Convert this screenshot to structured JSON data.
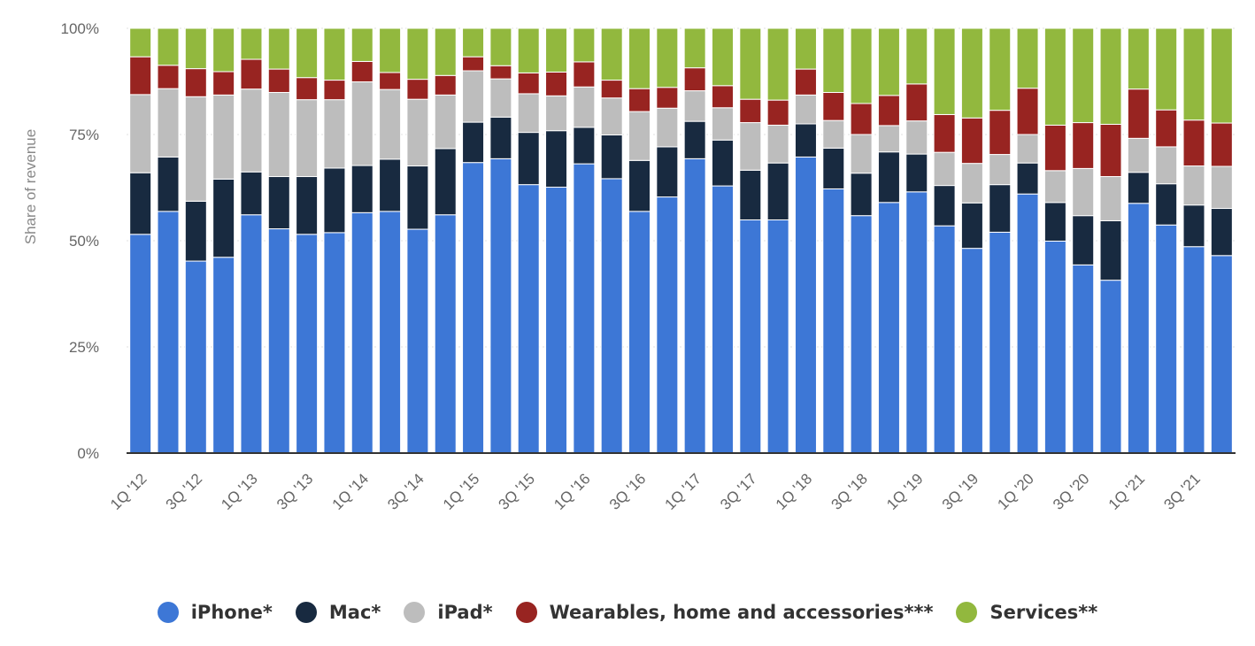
{
  "chart_data": {
    "type": "bar",
    "stacked": true,
    "ylabel": "Share of revenue",
    "ylim": [
      0,
      100
    ],
    "y_ticks": [
      "0%",
      "25%",
      "50%",
      "75%",
      "100%"
    ],
    "grid": true,
    "legend_position": "bottom",
    "categories": [
      "1Q '12",
      "2Q '12",
      "3Q '12",
      "4Q '12",
      "1Q '13",
      "2Q '13",
      "3Q '13",
      "4Q '13",
      "1Q '14",
      "2Q '14",
      "3Q '14",
      "4Q '14",
      "1Q '15",
      "2Q '15",
      "3Q '15",
      "4Q '15",
      "1Q '16",
      "2Q '16",
      "3Q '16",
      "4Q '16",
      "1Q '17",
      "2Q '17",
      "3Q '17",
      "4Q '17",
      "1Q '18",
      "2Q '18",
      "3Q '18",
      "4Q '18",
      "1Q '19",
      "2Q '19",
      "3Q '19",
      "4Q '19",
      "1Q '20",
      "2Q '20",
      "3Q '20",
      "4Q '20",
      "1Q '21",
      "2Q '21",
      "3Q '21",
      "4Q '21"
    ],
    "x_tick_labels": [
      "1Q '12",
      "3Q '12",
      "1Q '13",
      "3Q '13",
      "1Q '14",
      "3Q '14",
      "1Q '15",
      "3Q '15",
      "1Q '16",
      "3Q '16",
      "1Q '17",
      "3Q '17",
      "1Q '18",
      "3Q '18",
      "1Q '19",
      "3Q '19",
      "1Q '20",
      "3Q '20",
      "1Q '21",
      "3Q '21"
    ],
    "series": [
      {
        "name": "iPhone*",
        "color": "#3d77d6",
        "values": [
          51.5,
          56.9,
          45.2,
          46.1,
          56.1,
          52.8,
          51.5,
          51.9,
          56.6,
          56.9,
          52.7,
          56.1,
          68.4,
          69.3,
          63.2,
          62.6,
          68.1,
          64.6,
          56.9,
          60.3,
          69.3,
          62.9,
          54.9,
          54.9,
          69.7,
          62.2,
          55.9,
          59.0,
          61.5,
          53.5,
          48.2,
          52.0,
          61.0,
          49.9,
          44.3,
          40.7,
          58.8,
          53.7,
          48.6,
          46.5
        ]
      },
      {
        "name": "Mac*",
        "color": "#182a40",
        "values": [
          14.5,
          12.8,
          14.1,
          18.4,
          10.1,
          12.3,
          13.6,
          15.2,
          11.1,
          12.3,
          14.9,
          15.6,
          9.5,
          9.8,
          12.3,
          13.3,
          8.6,
          10.3,
          12.0,
          11.8,
          8.8,
          10.8,
          11.7,
          13.4,
          7.8,
          9.6,
          10.0,
          11.9,
          8.9,
          9.5,
          10.7,
          11.2,
          7.3,
          9.1,
          11.6,
          14.0,
          7.3,
          9.7,
          9.8,
          11.1
        ]
      },
      {
        "name": "iPad*",
        "color": "#bdbdbd",
        "values": [
          18.4,
          16.1,
          24.6,
          19.8,
          19.5,
          19.8,
          18.1,
          16.1,
          19.7,
          16.4,
          15.7,
          12.6,
          12.1,
          9.0,
          9.1,
          8.2,
          9.5,
          8.7,
          11.5,
          9.1,
          7.2,
          7.6,
          11.2,
          8.9,
          6.8,
          6.5,
          9.1,
          6.2,
          7.8,
          7.8,
          9.3,
          7.1,
          6.7,
          7.5,
          11.1,
          10.4,
          8.0,
          8.7,
          9.2,
          9.9
        ]
      },
      {
        "name": "Wearables, home and accessories***",
        "color": "#982421",
        "values": [
          8.9,
          5.5,
          6.6,
          5.5,
          7.0,
          5.5,
          5.2,
          4.6,
          4.8,
          4.0,
          4.7,
          4.6,
          3.3,
          3.1,
          4.9,
          5.6,
          5.9,
          4.2,
          5.4,
          4.9,
          5.4,
          5.2,
          5.5,
          5.9,
          6.1,
          6.6,
          7.3,
          7.1,
          8.7,
          8.9,
          10.7,
          10.4,
          10.9,
          10.7,
          10.8,
          12.3,
          11.6,
          8.7,
          10.8,
          10.2
        ]
      },
      {
        "name": "Services**",
        "color": "#92b83e",
        "values": [
          6.7,
          8.7,
          9.5,
          10.2,
          7.3,
          9.6,
          11.6,
          12.2,
          7.8,
          10.4,
          12.0,
          11.1,
          6.7,
          8.8,
          10.5,
          10.3,
          7.9,
          12.2,
          14.2,
          13.9,
          9.3,
          13.5,
          16.7,
          16.9,
          9.6,
          15.1,
          17.7,
          15.8,
          13.1,
          20.3,
          21.1,
          19.3,
          14.1,
          22.8,
          22.2,
          22.6,
          14.3,
          19.2,
          21.6,
          22.3
        ]
      }
    ]
  }
}
